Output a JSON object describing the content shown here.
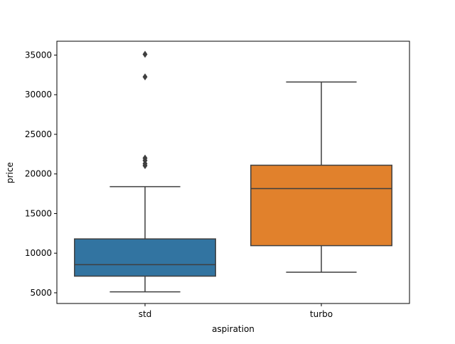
{
  "chart_data": {
    "type": "box",
    "title": "",
    "xlabel": "aspiration",
    "ylabel": "price",
    "ylim": [
      3650,
      36750
    ],
    "yticks": [
      5000,
      10000,
      15000,
      20000,
      25000,
      30000,
      35000
    ],
    "ytick_labels": [
      "5000",
      "10000",
      "15000",
      "20000",
      "25000",
      "30000",
      "35000"
    ],
    "grid": false,
    "legend": "none",
    "categories": [
      "std",
      "turbo"
    ],
    "boxes": [
      {
        "category": "std",
        "color": "#3274a1",
        "whisker_low": 5118,
        "q1": 7100,
        "median": 8550,
        "q3": 11800,
        "whisker_high": 18400,
        "outliers": [
          35100,
          32250,
          22000,
          21700,
          21300,
          21050
        ]
      },
      {
        "category": "turbo",
        "color": "#e1812c",
        "whisker_low": 7600,
        "q1": 10950,
        "median": 18150,
        "q3": 21100,
        "whisker_high": 31600,
        "outliers": []
      }
    ]
  }
}
